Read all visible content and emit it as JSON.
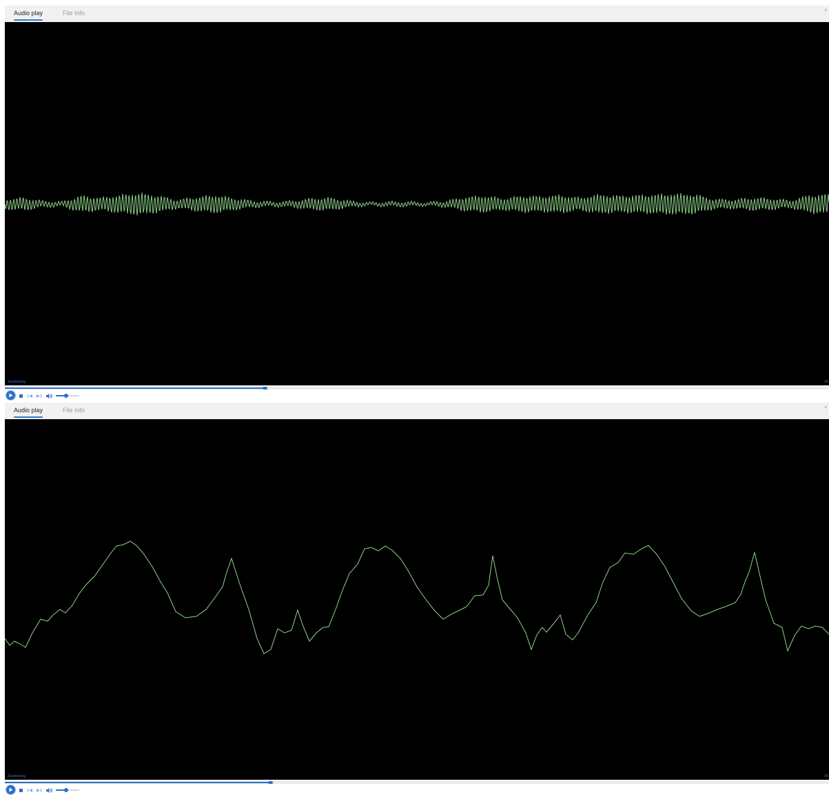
{
  "accent_color": "#2e6fc8",
  "waveform_color": "#8fd48a",
  "scope_background": "#000000",
  "players": [
    {
      "tabs": [
        {
          "label": "Audio play",
          "active": true
        },
        {
          "label": "File Info",
          "active": false
        }
      ],
      "track_name": "Zaunkoenig",
      "end_time": "00",
      "progress": 0.315,
      "volume": 0.45,
      "buttons": [
        "play-icon",
        "stop-icon",
        "previous-icon",
        "next-icon",
        "speaker-icon"
      ]
    },
    {
      "tabs": [
        {
          "label": "Audio play",
          "active": true
        },
        {
          "label": "File Info",
          "active": false
        }
      ],
      "track_name": "Zaunkoenig",
      "end_time": "00",
      "progress": 0.322,
      "volume": 0.45,
      "buttons": [
        "play-icon",
        "stop-icon",
        "previous-icon",
        "next-icon",
        "speaker-icon"
      ]
    }
  ]
}
